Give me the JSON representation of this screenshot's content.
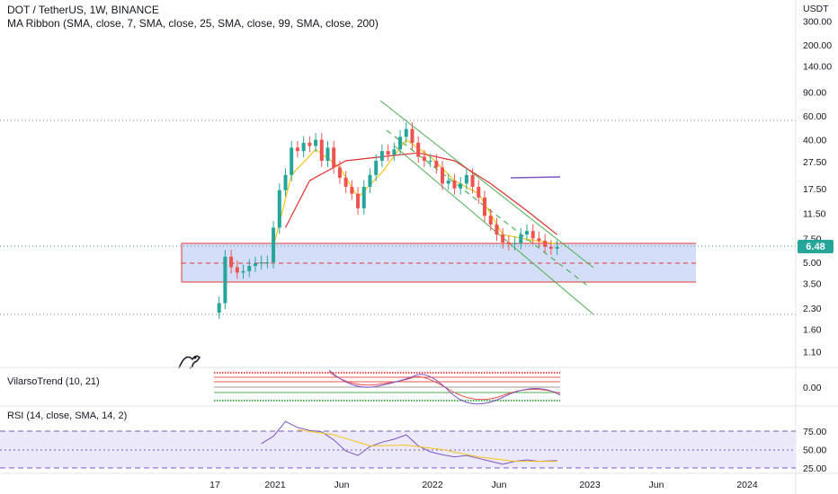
{
  "header": {
    "symbol_line": "DOT / TetherUS, 1W, BINANCE",
    "indicator_line": "MA Ribbon (SMA, close, 7, SMA, close, 25, SMA, close, 99, SMA, close, 200)"
  },
  "currency_label": "USDT",
  "last_price_label": "6.48",
  "colors": {
    "up": "#26a69a",
    "down": "#ef5350",
    "ma7": "#f5c518",
    "ma25": "#e03131",
    "channel": "#4caf50",
    "zone_fill": "#c7d3f7",
    "zone_border": "#e53935",
    "rsi": "#7e57c2",
    "rsi_ma": "#f5c518",
    "rsi_band": "#ece9fb"
  },
  "chart_data": [
    {
      "type": "line",
      "title": "DOT / TetherUS, 1W, BINANCE",
      "scale": "log",
      "y_ticks": [
        300,
        200,
        140,
        90,
        60,
        40,
        27.5,
        17.5,
        11.5,
        7.5,
        5,
        3.5,
        2.3,
        1.6,
        1.1
      ],
      "y_tick_labels": [
        "300.00",
        "200.00",
        "140.00",
        "90.00",
        "60.00",
        "40.00",
        "27.50",
        "17.50",
        "11.50",
        "7.50",
        "5.00",
        "3.50",
        "2.30",
        "1.60",
        "1.10"
      ],
      "x_tick_labels": [
        "17",
        "2021",
        "Jun",
        "2022",
        "Jun",
        "2023",
        "Jun",
        "2024"
      ],
      "series": [
        {
          "kind": "candles-close",
          "x": [
            "2020-08-24",
            "2020-09-07",
            "2020-09-21",
            "2020-10-05",
            "2020-10-19",
            "2020-11-02",
            "2020-11-16",
            "2020-11-30",
            "2020-12-14",
            "2020-12-28",
            "2021-01-11",
            "2021-01-25",
            "2021-02-08",
            "2021-02-22",
            "2021-03-08",
            "2021-03-22",
            "2021-04-05",
            "2021-04-19",
            "2021-05-03",
            "2021-05-17",
            "2021-05-31",
            "2021-06-14",
            "2021-06-28",
            "2021-07-12",
            "2021-07-26",
            "2021-08-09",
            "2021-08-23",
            "2021-09-06",
            "2021-09-20",
            "2021-10-04",
            "2021-10-18",
            "2021-11-01",
            "2021-11-15",
            "2021-11-29",
            "2021-12-13",
            "2021-12-27",
            "2022-01-10",
            "2022-01-24",
            "2022-02-07",
            "2022-02-21",
            "2022-03-07",
            "2022-03-21",
            "2022-04-04",
            "2022-04-18",
            "2022-05-02",
            "2022-05-16",
            "2022-05-30",
            "2022-06-13",
            "2022-06-27",
            "2022-07-11",
            "2022-07-25",
            "2022-08-08",
            "2022-08-22",
            "2022-09-05",
            "2022-09-19",
            "2022-10-03",
            "2022-10-17"
          ],
          "values": [
            2.5,
            5.5,
            4.6,
            4.2,
            4.3,
            4.7,
            4.9,
            5.0,
            5.0,
            9.0,
            17.0,
            22.0,
            35.0,
            33.0,
            38.0,
            36.0,
            40.0,
            28.0,
            35.0,
            25.0,
            21.0,
            18.0,
            16.0,
            12.5,
            18.0,
            22.0,
            28.0,
            33.0,
            31.0,
            34.0,
            42.0,
            48.0,
            38.0,
            30.0,
            28.0,
            28.0,
            25.0,
            19.0,
            20.0,
            17.5,
            19.0,
            22.0,
            18.0,
            15.0,
            11.0,
            9.5,
            8.0,
            7.0,
            6.8,
            6.9,
            8.0,
            8.5,
            7.5,
            7.2,
            6.5,
            6.3,
            6.48
          ]
        },
        {
          "name": "",
          "kind": "ma7",
          "x": [
            "2020-12-28",
            "2021-02-08",
            "2021-04-05",
            "2021-05-31",
            "2021-07-12",
            "2021-09-06",
            "2021-11-01",
            "2021-12-27",
            "2022-02-21",
            "2022-04-18",
            "2022-06-13",
            "2022-08-08",
            "2022-10-17"
          ],
          "values": [
            6.5,
            22.0,
            34.0,
            25.0,
            15.0,
            23.0,
            40.0,
            30.0,
            20.0,
            16.0,
            8.0,
            7.4,
            6.8
          ]
        },
        {
          "name": "",
          "kind": "ma25",
          "x": [
            "2021-01-25",
            "2021-03-22",
            "2021-06-14",
            "2021-09-06",
            "2021-11-29",
            "2022-02-21",
            "2022-05-16",
            "2022-08-08",
            "2022-10-17"
          ],
          "values": [
            9.0,
            20.0,
            28.0,
            30.0,
            32.0,
            28.0,
            19.0,
            12.0,
            8.0
          ]
        }
      ]
    },
    {
      "type": "line",
      "title": "VilarsoTrend (10, 21)",
      "y_ticks": [
        0
      ],
      "y_tick_labels": [
        "0.00"
      ],
      "series": [
        {
          "name": "",
          "x": [
            "2021-05-10",
            "2021-08-02",
            "2021-10-25",
            "2022-01-17",
            "2022-04-11",
            "2022-07-04",
            "2022-10-17"
          ],
          "values": [
            0.9,
            -0.2,
            0.5,
            -0.1,
            -0.4,
            -0.5,
            -0.3
          ]
        }
      ]
    },
    {
      "type": "line",
      "title": "RSI (14, close, SMA, 14, 2)",
      "y_ticks": [
        75,
        50,
        25
      ],
      "y_tick_labels": [
        "75.00",
        "50.00",
        "25.00"
      ],
      "series": [
        {
          "name": "",
          "x": [
            "2020-11-30",
            "2020-12-28",
            "2021-01-25",
            "2021-02-22",
            "2021-03-22",
            "2021-04-19",
            "2021-05-17",
            "2021-06-14",
            "2021-07-12",
            "2021-08-09",
            "2021-09-06",
            "2021-10-04",
            "2021-11-01",
            "2021-11-29",
            "2021-12-27",
            "2022-01-24",
            "2022-02-21",
            "2022-03-21",
            "2022-04-18",
            "2022-05-16",
            "2022-06-13",
            "2022-07-11",
            "2022-08-08",
            "2022-09-05",
            "2022-10-17"
          ],
          "values": [
            58,
            68,
            88,
            80,
            76,
            74,
            63,
            48,
            42,
            54,
            60,
            64,
            70,
            55,
            47,
            43,
            40,
            42,
            38,
            34,
            30,
            34,
            36,
            34,
            35
          ]
        },
        {
          "name": "",
          "x": [
            "2021-02-22",
            "2021-05-17",
            "2021-08-09",
            "2021-11-01",
            "2022-01-24",
            "2022-04-18",
            "2022-07-11",
            "2022-10-17"
          ],
          "values": [
            77,
            70,
            55,
            56,
            50,
            40,
            34,
            34
          ]
        }
      ]
    }
  ]
}
